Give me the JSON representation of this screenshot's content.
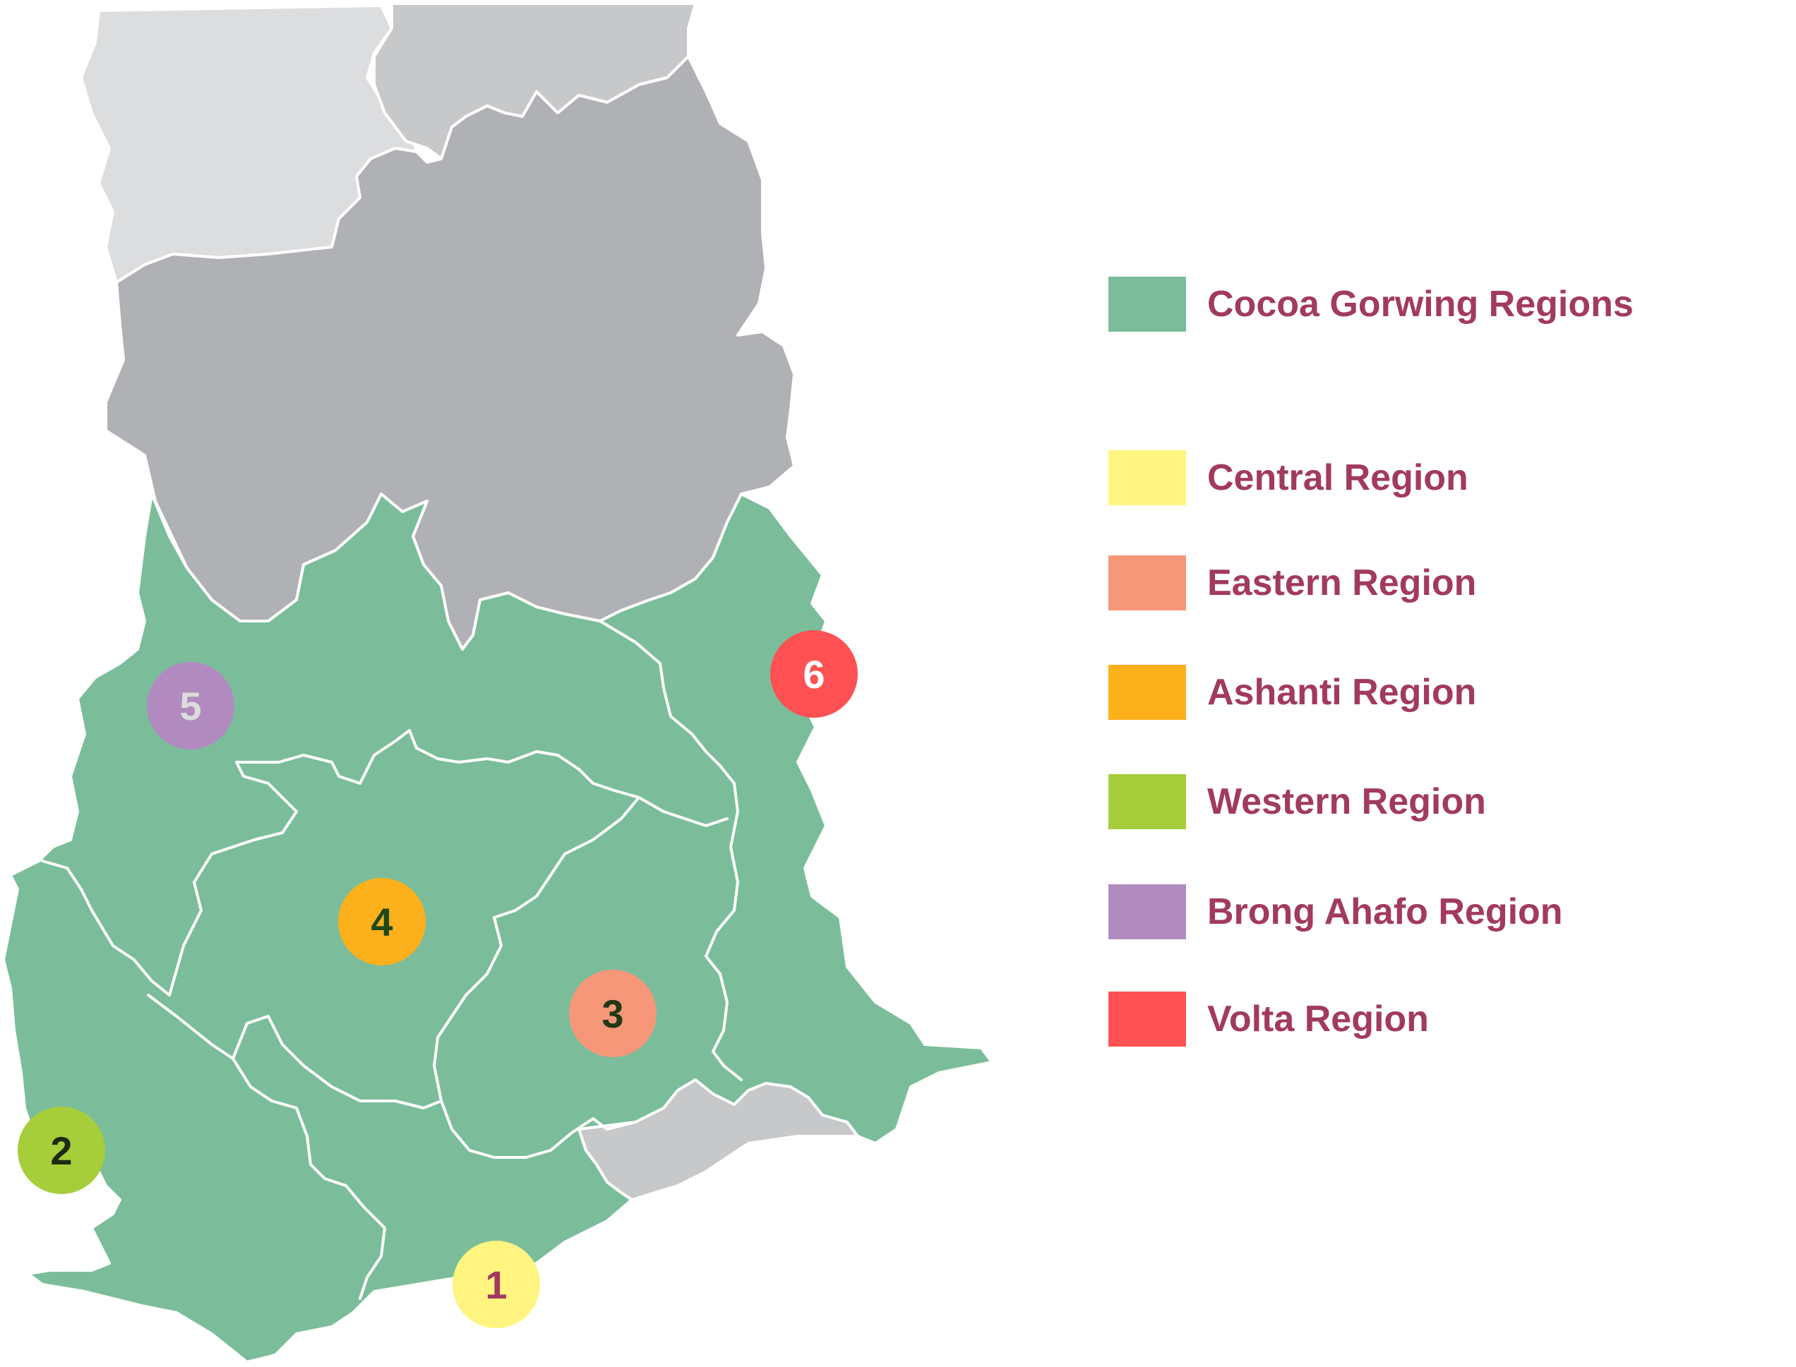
{
  "colors": {
    "cocoa": "#7bbd9a",
    "north_light": "#dcdddf",
    "north_mid": "#c7c8ca",
    "north_dark": "#b0b1b4",
    "coast_gray": "#c7c8ca",
    "border": "#ffffff",
    "label_text": "#a23a5f"
  },
  "legend": {
    "cocoa": {
      "label": "Cocoa Gorwing Regions",
      "color": "#7bbd9a"
    },
    "items": [
      {
        "label": "Central Region",
        "color": "#fff47f"
      },
      {
        "label": "Eastern Region",
        "color": "#f6977a"
      },
      {
        "label": "Ashanti Region",
        "color": "#fbb01c"
      },
      {
        "label": "Western Region",
        "color": "#a6cd3a"
      },
      {
        "label": "Brong Ahafo Region",
        "color": "#b18bc0"
      },
      {
        "label": "Volta Region",
        "color": "#ff5153"
      }
    ]
  },
  "markers": [
    {
      "number": "1",
      "region": "Central Region",
      "fill": "#fff47f",
      "text_color": "#a23a5f"
    },
    {
      "number": "2",
      "region": "Western Region",
      "fill": "#a6cd3a",
      "text_color": "#1d2a12"
    },
    {
      "number": "3",
      "region": "Eastern Region",
      "fill": "#f6977a",
      "text_color": "#1f3a14"
    },
    {
      "number": "4",
      "region": "Ashanti Region",
      "fill": "#fbb01c",
      "text_color": "#1f4a14"
    },
    {
      "number": "5",
      "region": "Brong Ahafo Region",
      "fill": "#b18bc0",
      "text_color": "#dcdcdc"
    },
    {
      "number": "6",
      "region": "Volta Region",
      "fill": "#ff5153",
      "text_color": "#ffffff"
    }
  ]
}
